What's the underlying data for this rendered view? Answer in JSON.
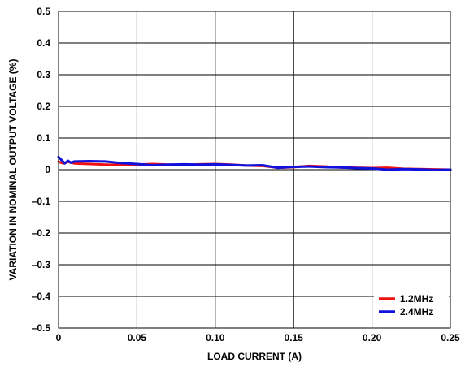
{
  "chart_data": {
    "type": "line",
    "title": "",
    "xlabel": "LOAD CURRENT (A)",
    "ylabel": "VARIATION IN NOMINAL OUTPUT VOLTAGE (%)",
    "xlim": [
      0,
      0.25
    ],
    "ylim": [
      -0.5,
      0.5
    ],
    "x_ticks": [
      0,
      0.05,
      0.1,
      0.15,
      0.2,
      0.25
    ],
    "x_tick_labels": [
      "0",
      "0.05",
      "0.10",
      "0.15",
      "0.20",
      "0.25"
    ],
    "y_ticks": [
      0.5,
      0.4,
      0.3,
      0.2,
      0.1,
      0,
      -0.1,
      -0.2,
      -0.3,
      -0.4,
      -0.5
    ],
    "y_tick_labels": [
      "0.5",
      "0.4",
      "0.3",
      "0.2",
      "0.1",
      "0",
      "–0.1",
      "–0.2",
      "–0.3",
      "–0.4",
      "–0.5"
    ],
    "grid": true,
    "legend_position": "bottom-right",
    "series": [
      {
        "name": "1.2MHz",
        "color": "#ee1111",
        "x": [
          0,
          0.003,
          0.006,
          0.01,
          0.02,
          0.03,
          0.04,
          0.05,
          0.06,
          0.07,
          0.08,
          0.09,
          0.1,
          0.11,
          0.12,
          0.13,
          0.14,
          0.15,
          0.16,
          0.17,
          0.18,
          0.19,
          0.2,
          0.21,
          0.22,
          0.23,
          0.24,
          0.25
        ],
        "y": [
          0.025,
          0.02,
          0.025,
          0.02,
          0.018,
          0.016,
          0.015,
          0.016,
          0.018,
          0.016,
          0.015,
          0.017,
          0.018,
          0.016,
          0.013,
          0.012,
          0.006,
          0.008,
          0.012,
          0.01,
          0.007,
          0.006,
          0.005,
          0.006,
          0.003,
          0.002,
          0.001,
          0.0
        ]
      },
      {
        "name": "2.4MHz",
        "color": "#1111dd",
        "x": [
          0,
          0.002,
          0.004,
          0.006,
          0.008,
          0.01,
          0.02,
          0.03,
          0.04,
          0.05,
          0.06,
          0.07,
          0.08,
          0.09,
          0.1,
          0.11,
          0.12,
          0.13,
          0.14,
          0.15,
          0.16,
          0.17,
          0.18,
          0.19,
          0.2,
          0.21,
          0.22,
          0.23,
          0.24,
          0.25
        ],
        "y": [
          0.04,
          0.03,
          0.02,
          0.028,
          0.022,
          0.026,
          0.027,
          0.026,
          0.021,
          0.018,
          0.014,
          0.016,
          0.017,
          0.016,
          0.017,
          0.015,
          0.013,
          0.014,
          0.006,
          0.009,
          0.01,
          0.008,
          0.007,
          0.005,
          0.004,
          0.0,
          0.002,
          0.001,
          -0.001,
          0.0
        ]
      }
    ]
  }
}
